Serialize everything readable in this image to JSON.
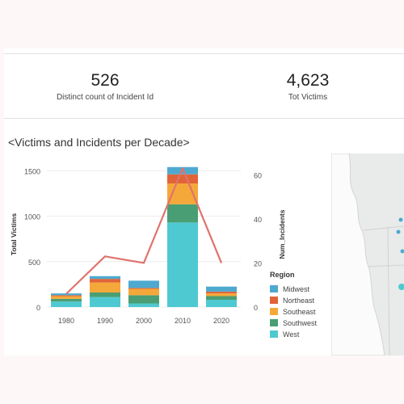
{
  "kpis": [
    {
      "value": "526",
      "label": "Distinct count of Incident Id"
    },
    {
      "value": "4,623",
      "label": "Tot Victims"
    }
  ],
  "chart_title": "<Victims and Incidents per Decade>",
  "chart_data": {
    "type": "bar",
    "categories": [
      "1980",
      "1990",
      "2000",
      "2010",
      "2020"
    ],
    "stacked": true,
    "ylabel": "Total Victims",
    "y2label": "Num_Incidents",
    "ylim": [
      0,
      1600
    ],
    "y2lim": [
      0,
      66
    ],
    "yticks": [
      "0",
      "500",
      "1000",
      "1500"
    ],
    "y2ticks": [
      "0",
      "20",
      "40",
      "60"
    ],
    "series": [
      {
        "name": "West",
        "color": "#4fc9d1",
        "values": [
          60,
          110,
          40,
          930,
          80
        ]
      },
      {
        "name": "Southwest",
        "color": "#4a9e74",
        "values": [
          30,
          50,
          90,
          200,
          40
        ]
      },
      {
        "name": "Southeast",
        "color": "#f5a83a",
        "values": [
          30,
          110,
          70,
          230,
          30
        ]
      },
      {
        "name": "Northeast",
        "color": "#e06438",
        "values": [
          10,
          40,
          10,
          100,
          20
        ]
      },
      {
        "name": "Midwest",
        "color": "#4ea9cf",
        "values": [
          20,
          30,
          80,
          80,
          55
        ]
      }
    ],
    "line": {
      "name": "Num_Incidents",
      "color": "#e0736d",
      "values": [
        6,
        23,
        20,
        63,
        20
      ]
    },
    "legend_title": "Region",
    "legend_placement": "right"
  }
}
